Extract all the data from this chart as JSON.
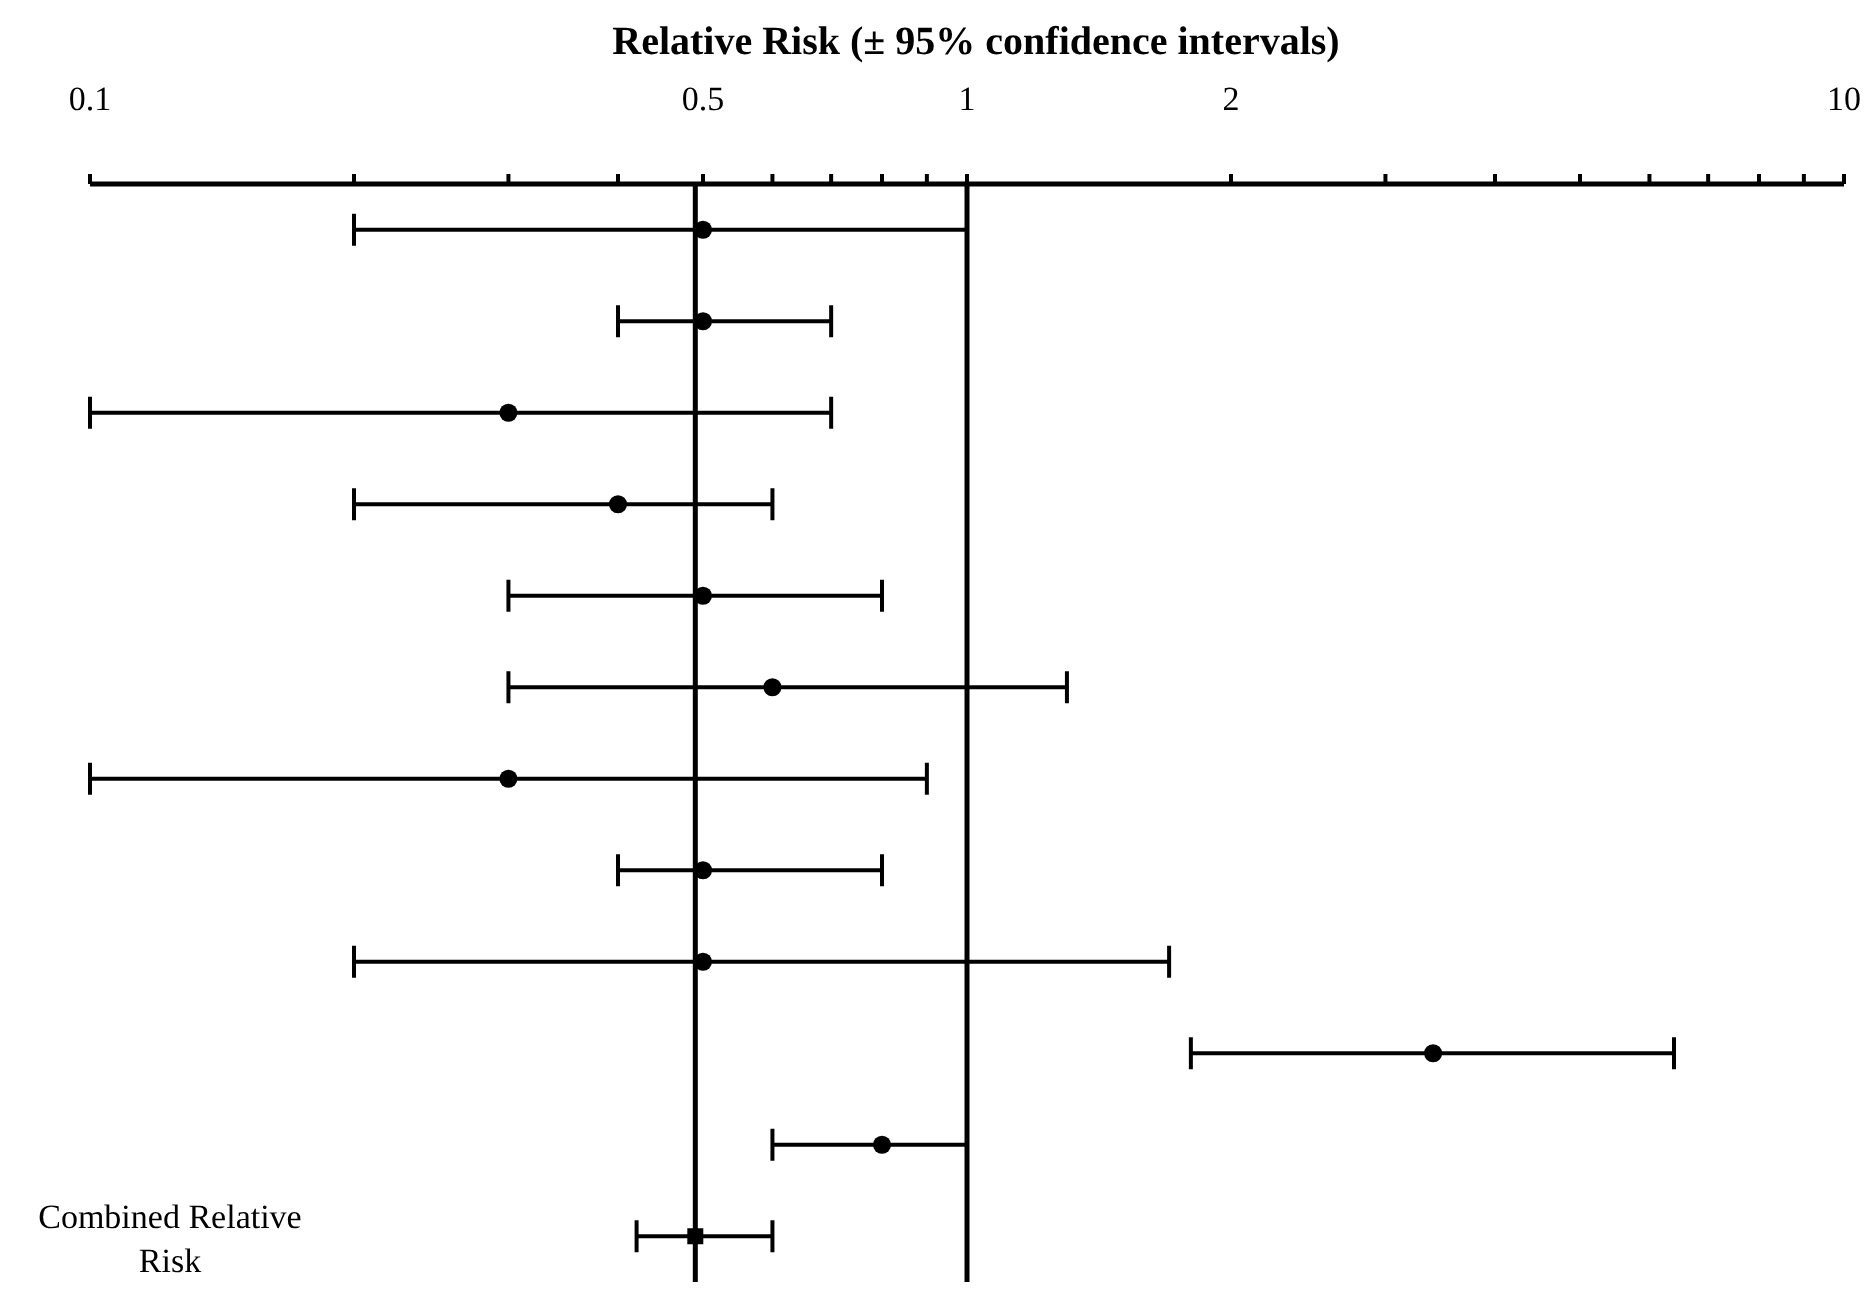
{
  "chart_data": {
    "type": "scatter",
    "orientation": "horizontal",
    "xlabel": "Relative Risk (± 95% confidence intervals)",
    "categories": [
      null,
      null,
      null,
      null,
      null,
      null,
      null,
      null,
      null,
      null,
      null,
      "Combined Relative Risk"
    ],
    "series": [
      {
        "color": "#000000",
        "marker": "circle",
        "values": [
          0.5,
          0.5,
          0.3,
          0.4,
          0.5,
          0.6,
          0.3,
          0.5,
          0.5,
          3.4,
          0.8,
          null
        ],
        "errors": [
          [
            0.2,
            1
          ],
          [
            0.4,
            0.7
          ],
          [
            0.1,
            0.7
          ],
          [
            0.2,
            0.6
          ],
          [
            0.3,
            0.8
          ],
          [
            0.3,
            1.3
          ],
          [
            0.1,
            0.9
          ],
          [
            0.4,
            0.8
          ],
          [
            0.2,
            1.7
          ],
          [
            1.8,
            6.4
          ],
          [
            0.6,
            1
          ],
          null
        ]
      },
      {
        "color": "#000000",
        "marker": "square",
        "values": [
          null,
          null,
          null,
          null,
          null,
          null,
          null,
          null,
          null,
          null,
          null,
          0.49
        ],
        "errors": [
          null,
          null,
          null,
          null,
          null,
          null,
          null,
          null,
          null,
          null,
          null,
          [
            0.42,
            0.6
          ]
        ]
      }
    ],
    "log": "x",
    "xlim": [
      0.1,
      10
    ],
    "xticks": [
      0.1,
      {
        "value": 0.2,
        "label": null
      },
      {
        "value": 0.3,
        "label": null
      },
      {
        "value": 0.4,
        "label": null
      },
      0.5,
      {
        "value": 0.6,
        "label": null
      },
      {
        "value": 0.7,
        "label": null
      },
      {
        "value": 0.8,
        "label": null
      },
      {
        "value": 0.9,
        "label": null
      },
      1,
      2,
      {
        "value": 3,
        "label": null
      },
      {
        "value": 4,
        "label": null
      },
      {
        "value": 5,
        "label": null
      },
      {
        "value": 6,
        "label": null
      },
      {
        "value": 7,
        "label": null
      },
      {
        "value": 8,
        "label": null
      },
      {
        "value": 9,
        "label": null
      },
      10
    ],
    "ref_lines": [
      {
        "axis": "x",
        "value": 0.49,
        "label": null,
        "color": "#000000"
      },
      {
        "axis": "x",
        "value": 1,
        "label": null,
        "color": "#000000"
      }
    ],
    "grid": false,
    "legend": false
  }
}
